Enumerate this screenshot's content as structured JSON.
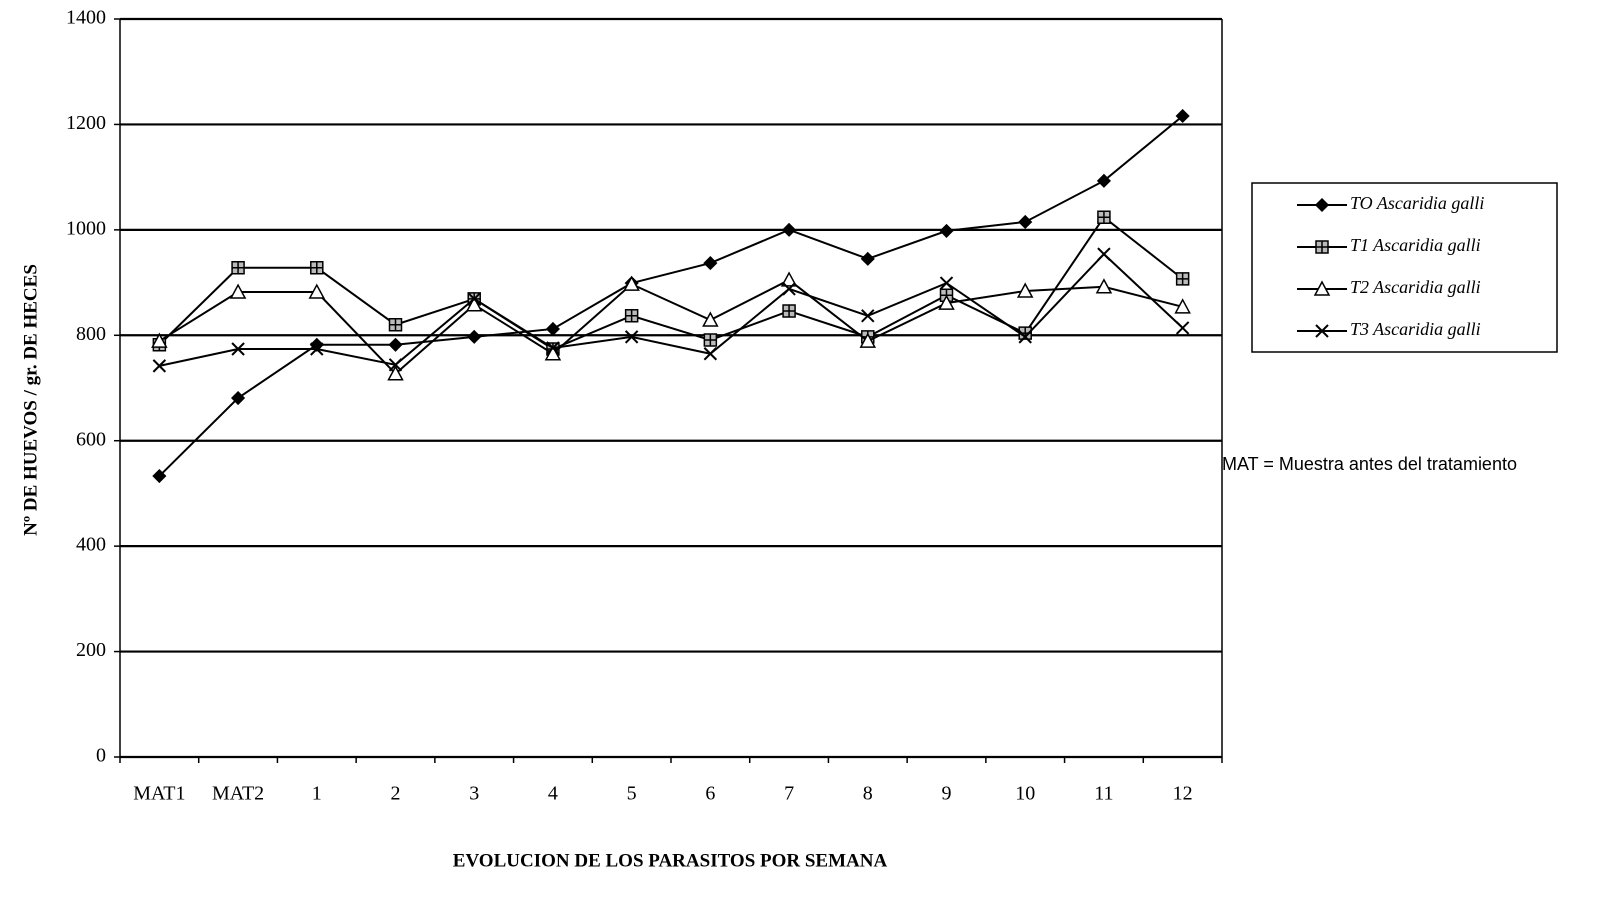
{
  "chart_data": {
    "type": "line",
    "xlabel": "EVOLUCION DE LOS PARASITOS POR SEMANA",
    "ylabel": "Nº DE HUEVOS / gr. DE HECES",
    "annotation": "MAT = Muestra antes del tratamiento",
    "categories": [
      "MAT1",
      "MAT2",
      "1",
      "2",
      "3",
      "4",
      "5",
      "6",
      "7",
      "8",
      "9",
      "10",
      "11",
      "12"
    ],
    "ylim": [
      0,
      1400
    ],
    "yticks": [
      0,
      200,
      400,
      600,
      800,
      1000,
      1200,
      1400
    ],
    "grid": true,
    "legend": "right",
    "series": [
      {
        "name": "TO Ascaridia galli",
        "color": "#000000",
        "marker": "diamond",
        "values": [
          533,
          681,
          782,
          782,
          797,
          812,
          899,
          937,
          1000,
          945,
          998,
          1015,
          1093,
          1216
        ]
      },
      {
        "name": "T1 Ascaridia galli",
        "color": "#000000",
        "marker": "square",
        "values": [
          782,
          928,
          928,
          820,
          869,
          774,
          837,
          791,
          846,
          797,
          876,
          804,
          1024,
          907
        ]
      },
      {
        "name": "T2 Ascaridia galli",
        "color": "#000000",
        "marker": "triangle",
        "values": [
          789,
          882,
          882,
          727,
          858,
          765,
          897,
          829,
          905,
          789,
          861,
          884,
          892,
          854
        ]
      },
      {
        "name": "T3 Ascaridia galli",
        "color": "#000000",
        "marker": "cross",
        "values": [
          742,
          774,
          774,
          744,
          869,
          776,
          797,
          765,
          888,
          837,
          899,
          797,
          954,
          814
        ]
      }
    ]
  }
}
